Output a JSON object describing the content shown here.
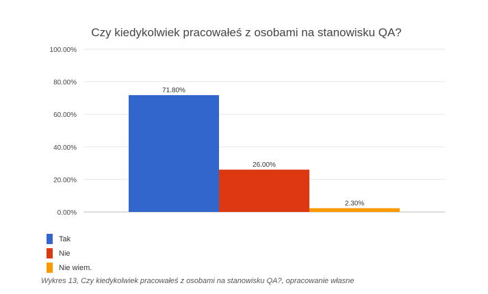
{
  "chart_data": {
    "type": "bar",
    "title": "Czy kiedykolwiek pracowałeś z osobami na stanowisku QA?",
    "categories": [
      "Tak",
      "Nie",
      "Nie wiem."
    ],
    "values": [
      71.8,
      26.0,
      2.3
    ],
    "value_labels": [
      "71.80%",
      "26.00%",
      "2.30%"
    ],
    "colors": [
      "#3366cc",
      "#dc3912",
      "#ff9900"
    ],
    "ylim": [
      0,
      100
    ],
    "yticks": [
      0,
      20,
      40,
      60,
      80,
      100
    ],
    "ytick_labels": [
      "0.00%",
      "20.00%",
      "40.00%",
      "60.00%",
      "80.00%",
      "100.00%"
    ],
    "xlabel": "",
    "ylabel": "",
    "grid": true,
    "legend_position": "bottom-left"
  },
  "legend": [
    {
      "label": "Tak",
      "color": "#3366cc"
    },
    {
      "label": "Nie",
      "color": "#dc3912"
    },
    {
      "label": "Nie wiem.",
      "color": "#ff9900"
    }
  ],
  "caption": "Wykres 13, Czy kiedykolwiek pracowałeś z osobami na stanowisku QA?, opracowanie własne"
}
